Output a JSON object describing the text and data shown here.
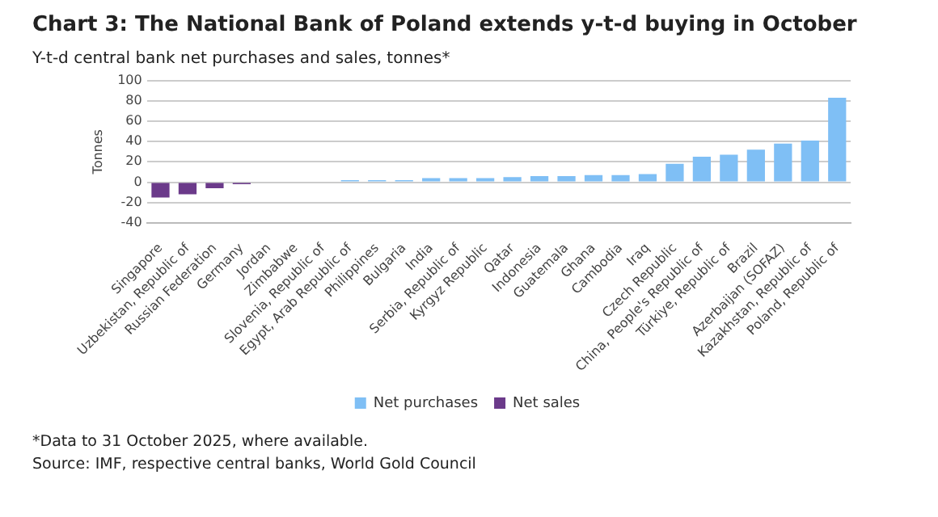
{
  "chart_data": {
    "type": "bar",
    "title": "Chart 3: The National Bank of Poland extends y-t-d buying in October",
    "subtitle": "Y-t-d central bank net purchases and sales, tonnes*",
    "ylabel": "Tonnes",
    "categories": [
      "Singapore",
      "Uzbekistan, Republic of",
      "Russian Federation",
      "Germany",
      "Jordan",
      "Zimbabwe",
      "Slovenia, Republic of",
      "Egypt, Arab Republic of",
      "Philippines",
      "Bulgaria",
      "India",
      "Serbia, Republic of",
      "Kyrgyz Republic",
      "Qatar",
      "Indonesia",
      "Guatemala",
      "Ghana",
      "Cambodia",
      "Iraq",
      "Czech Republic",
      "China, People's Republic of",
      "Türkiye, Republic of",
      "Brazil",
      "Azerbaijan (SOFAZ)",
      "Kazakhstan, Republic of",
      "Poland, Republic of"
    ],
    "series": [
      {
        "name": "Net purchases",
        "color": "#7fbff5",
        "values": [
          null,
          null,
          null,
          null,
          null,
          null,
          null,
          2,
          2,
          2,
          4,
          4,
          4,
          5,
          6,
          6,
          7,
          7,
          8,
          18,
          25,
          27,
          32,
          38,
          41,
          83
        ]
      },
      {
        "name": "Net sales",
        "color": "#6b3a8a",
        "values": [
          -15,
          -12,
          -6,
          -2,
          null,
          null,
          null,
          null,
          null,
          null,
          null,
          null,
          null,
          null,
          null,
          null,
          null,
          null,
          null,
          null,
          null,
          null,
          null,
          null,
          null,
          null
        ]
      }
    ],
    "stacked": true,
    "ylim": [
      -40,
      100
    ],
    "yticks": [
      -40,
      -20,
      0,
      20,
      40,
      60,
      80,
      100
    ],
    "grid": "y",
    "legend": "bottom",
    "annotations": [
      "*Data to 31 October 2025, where available.",
      "Source: IMF, respective central banks, World Gold Council"
    ]
  }
}
